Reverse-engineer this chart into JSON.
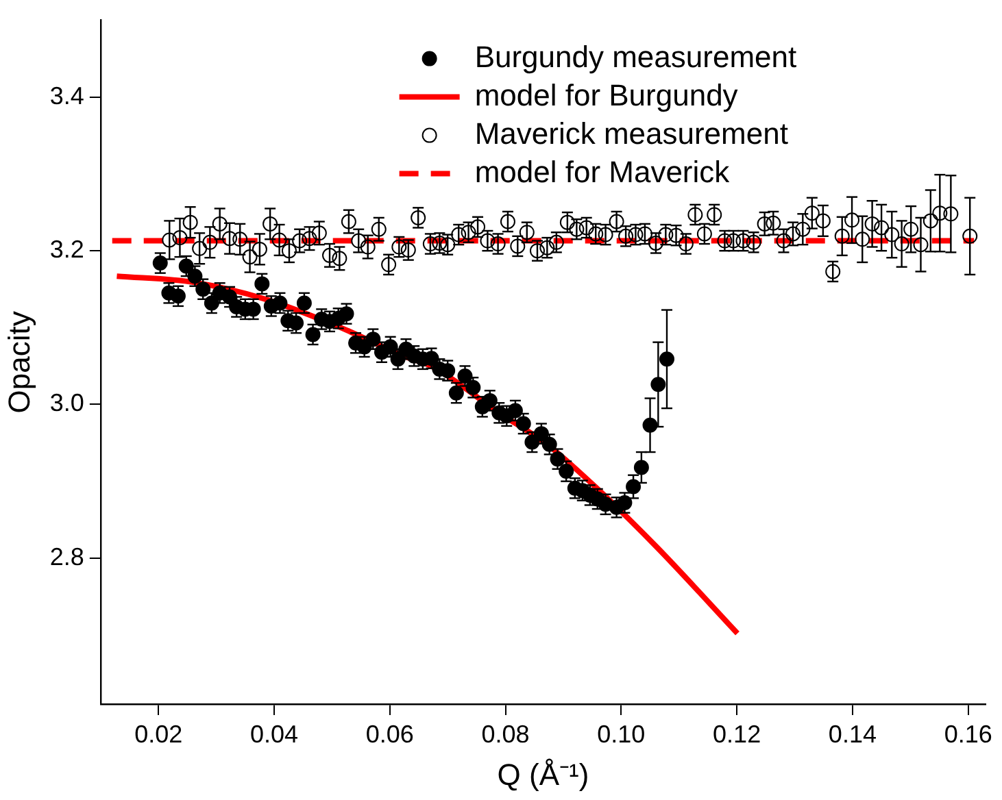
{
  "chart_data": {
    "type": "scatter",
    "xlabel": "Q (Å⁻¹)",
    "ylabel": "Opacity",
    "xlim": [
      0.01,
      0.163
    ],
    "ylim": [
      2.61,
      3.5
    ],
    "xticks": [
      0.02,
      0.04,
      0.06,
      0.08,
      {
        "value": 0.1,
        "label": "0.10"
      },
      0.12,
      0.14,
      0.16
    ],
    "yticks": [
      2.8,
      {
        "value": 3,
        "label": "3.0"
      },
      3.2,
      3.4
    ],
    "grid": false,
    "legend": "top",
    "series": [
      {
        "name": "Burgundy measurement",
        "type": "scatter",
        "marker": "circle",
        "color": "#000000",
        "x": [
          0.0203,
          0.0218,
          0.0234,
          0.0248,
          0.0263,
          0.0277,
          0.0292,
          0.0306,
          0.0323,
          0.0335,
          0.035,
          0.0364,
          0.0379,
          0.0395,
          0.041,
          0.0424,
          0.0438,
          0.0452,
          0.0467,
          0.0482,
          0.0496,
          0.0511,
          0.0525,
          0.0541,
          0.0556,
          0.0571,
          0.0586,
          0.0601,
          0.0614,
          0.0628,
          0.0642,
          0.0657,
          0.0672,
          0.0686,
          0.07,
          0.0715,
          0.073,
          0.0744,
          0.076,
          0.0773,
          0.0789,
          0.0802,
          0.0817,
          0.0831,
          0.0846,
          0.0862,
          0.0876,
          0.089,
          0.0905,
          0.092,
          0.0933,
          0.0946,
          0.0959,
          0.0973,
          0.0992,
          0.1006,
          0.1021,
          0.1035,
          0.105,
          0.1064,
          0.1079
        ],
        "values": [
          3.184,
          3.145,
          3.141,
          3.18,
          3.167,
          3.15,
          3.132,
          3.145,
          3.14,
          3.127,
          3.124,
          3.124,
          3.157,
          3.128,
          3.132,
          3.109,
          3.106,
          3.132,
          3.091,
          3.111,
          3.108,
          3.112,
          3.118,
          3.08,
          3.075,
          3.085,
          3.068,
          3.075,
          3.059,
          3.072,
          3.063,
          3.059,
          3.06,
          3.046,
          3.044,
          3.015,
          3.037,
          3.022,
          2.997,
          3.005,
          2.989,
          2.985,
          2.992,
          2.975,
          2.951,
          2.962,
          2.948,
          2.929,
          2.913,
          2.891,
          2.888,
          2.882,
          2.877,
          2.87,
          2.866,
          2.872,
          2.893,
          2.918,
          2.973,
          3.026,
          3.059
        ],
        "errors": [
          0.013,
          0.013,
          0.013,
          0.013,
          0.013,
          0.013,
          0.013,
          0.013,
          0.013,
          0.013,
          0.013,
          0.013,
          0.013,
          0.013,
          0.013,
          0.013,
          0.013,
          0.013,
          0.013,
          0.013,
          0.013,
          0.013,
          0.013,
          0.013,
          0.013,
          0.013,
          0.013,
          0.013,
          0.013,
          0.013,
          0.013,
          0.013,
          0.013,
          0.013,
          0.013,
          0.013,
          0.013,
          0.013,
          0.013,
          0.013,
          0.013,
          0.013,
          0.013,
          0.013,
          0.013,
          0.013,
          0.013,
          0.013,
          0.013,
          0.013,
          0.013,
          0.013,
          0.013,
          0.013,
          0.013,
          0.013,
          0.015,
          0.02,
          0.035,
          0.055,
          0.064
        ]
      },
      {
        "name": "model for Burgundy",
        "type": "line",
        "marker": "none",
        "line_style": "solid",
        "color": "#ff0000",
        "x": [
          0.0128,
          0.0261,
          0.0385,
          0.0509,
          0.0624,
          0.0674,
          0.0789,
          0.0872,
          0.0955,
          0.1062,
          0.1201
        ],
        "values": [
          3.167,
          3.159,
          3.137,
          3.102,
          3.063,
          3.049,
          2.989,
          2.948,
          2.893,
          2.814,
          2.702
        ]
      },
      {
        "name": "Maverick measurement",
        "type": "scatter",
        "marker": "circle",
        "color": "#000000",
        "x": [
          0.0219,
          0.0237,
          0.0255,
          0.0271,
          0.0289,
          0.0306,
          0.0323,
          0.0341,
          0.0358,
          0.0375,
          0.0393,
          0.0409,
          0.0426,
          0.0444,
          0.0461,
          0.0478,
          0.0496,
          0.0513,
          0.0529,
          0.0546,
          0.0562,
          0.0581,
          0.0598,
          0.0616,
          0.0632,
          0.0649,
          0.067,
          0.0686,
          0.07,
          0.0719,
          0.0736,
          0.0752,
          0.0769,
          0.0787,
          0.0804,
          0.0821,
          0.0837,
          0.0855,
          0.0872,
          0.0888,
          0.0907,
          0.0923,
          0.094,
          0.0956,
          0.0973,
          0.0992,
          0.1008,
          0.1025,
          0.1041,
          0.106,
          0.1077,
          0.1095,
          0.1112,
          0.1128,
          0.1144,
          0.1161,
          0.1179,
          0.1194,
          0.1211,
          0.1229,
          0.1248,
          0.1263,
          0.1281,
          0.1297,
          0.1314,
          0.133,
          0.1349,
          0.1366,
          0.1382,
          0.1399,
          0.1417,
          0.1434,
          0.145,
          0.1468,
          0.1485,
          0.1501,
          0.1518,
          0.1535,
          0.1551,
          0.157,
          0.1603
        ],
        "values": [
          3.214,
          3.217,
          3.237,
          3.203,
          3.211,
          3.235,
          3.216,
          3.215,
          3.192,
          3.202,
          3.235,
          3.214,
          3.2,
          3.213,
          3.216,
          3.223,
          3.194,
          3.19,
          3.238,
          3.213,
          3.205,
          3.228,
          3.182,
          3.205,
          3.201,
          3.243,
          3.209,
          3.21,
          3.208,
          3.221,
          3.224,
          3.231,
          3.213,
          3.209,
          3.238,
          3.206,
          3.224,
          3.2,
          3.204,
          3.211,
          3.237,
          3.228,
          3.23,
          3.222,
          3.221,
          3.238,
          3.219,
          3.221,
          3.222,
          3.21,
          3.221,
          3.22,
          3.209,
          3.247,
          3.222,
          3.247,
          3.213,
          3.213,
          3.213,
          3.211,
          3.235,
          3.236,
          3.213,
          3.222,
          3.228,
          3.249,
          3.239,
          3.173,
          3.219,
          3.24,
          3.215,
          3.235,
          3.23,
          3.221,
          3.209,
          3.228,
          3.208,
          3.239,
          3.249,
          3.248,
          3.219
        ],
        "errors": [
          0.025,
          0.025,
          0.02,
          0.02,
          0.02,
          0.02,
          0.02,
          0.02,
          0.02,
          0.02,
          0.02,
          0.02,
          0.015,
          0.015,
          0.015,
          0.015,
          0.015,
          0.015,
          0.015,
          0.015,
          0.015,
          0.015,
          0.013,
          0.013,
          0.013,
          0.013,
          0.013,
          0.013,
          0.013,
          0.013,
          0.013,
          0.013,
          0.013,
          0.013,
          0.013,
          0.013,
          0.013,
          0.013,
          0.013,
          0.013,
          0.013,
          0.013,
          0.013,
          0.013,
          0.013,
          0.013,
          0.013,
          0.013,
          0.013,
          0.013,
          0.013,
          0.013,
          0.013,
          0.013,
          0.013,
          0.013,
          0.013,
          0.013,
          0.013,
          0.013,
          0.015,
          0.015,
          0.015,
          0.015,
          0.02,
          0.02,
          0.02,
          0.013,
          0.025,
          0.03,
          0.03,
          0.03,
          0.03,
          0.03,
          0.03,
          0.03,
          0.035,
          0.04,
          0.05,
          0.05,
          0.05
        ]
      },
      {
        "name": "model for Maverick",
        "type": "line",
        "marker": "none",
        "line_style": "dashed",
        "color": "#ff0000",
        "x": [
          0.012,
          0.161
        ],
        "values": [
          3.213,
          3.213
        ]
      }
    ]
  }
}
